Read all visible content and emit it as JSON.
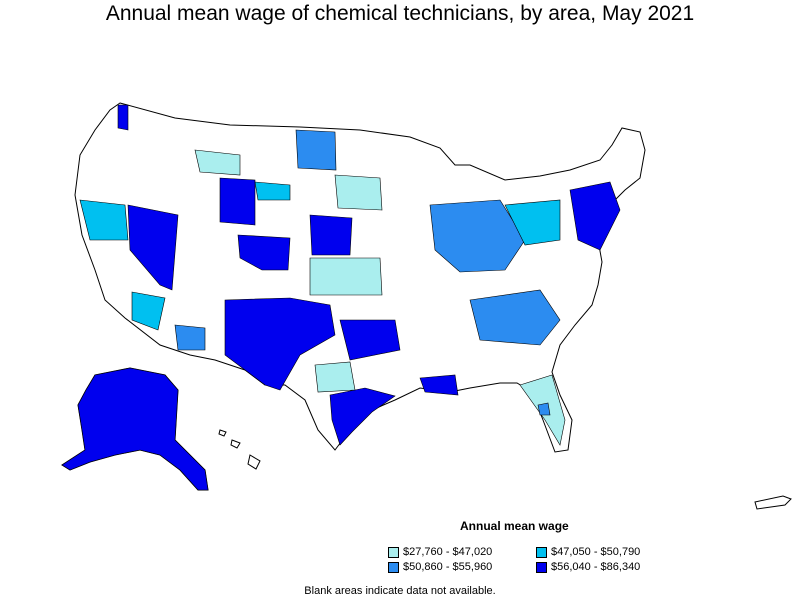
{
  "title": "Annual mean wage of chemical technicians, by area, May 2021",
  "legend": {
    "title": "Annual mean wage",
    "items": [
      {
        "label": "$27,760 - $47,020",
        "color": "#aaeeee"
      },
      {
        "label": "$47,050 - $50,790",
        "color": "#00c0f0"
      },
      {
        "label": "$50,860 - $55,960",
        "color": "#2c8cf0"
      },
      {
        "label": "$56,040 - $86,340",
        "color": "#0000ee"
      }
    ]
  },
  "note": "Blank areas indicate data not available.",
  "colors": {
    "outline": "#000000",
    "blank": "#ffffff"
  }
}
